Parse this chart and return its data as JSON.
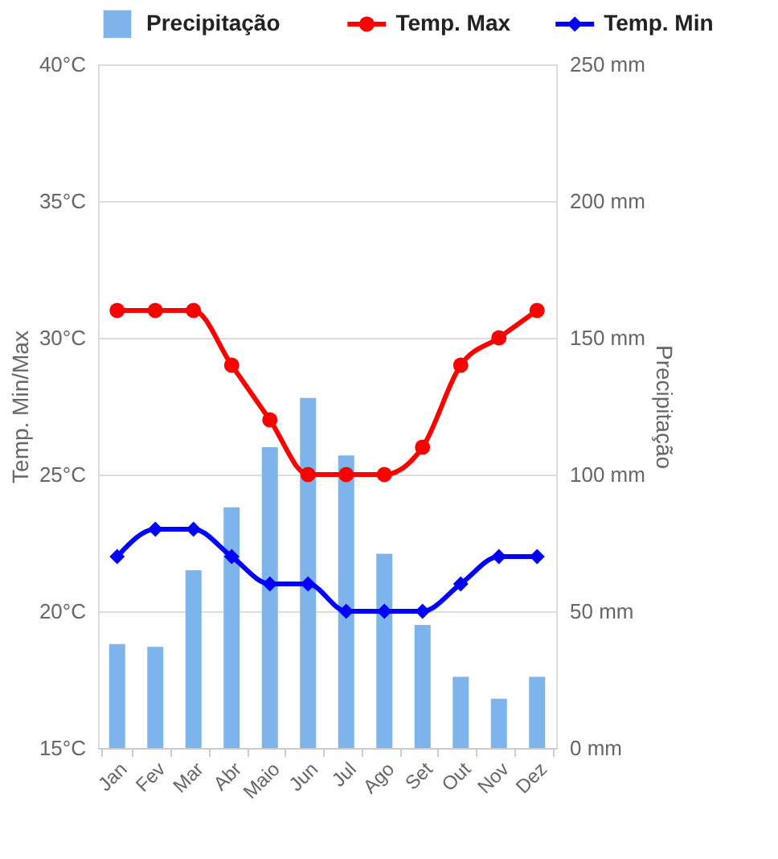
{
  "chart_data": {
    "type": "bar",
    "categories": [
      "Jan",
      "Fev",
      "Mar",
      "Abr",
      "Maio",
      "Jun",
      "Jul",
      "Ago",
      "Set",
      "Out",
      "Nov",
      "Dez"
    ],
    "series": [
      {
        "name": "Precipitação",
        "axis": "y2",
        "color": "#7cb4eb",
        "values": [
          38,
          37,
          65,
          88,
          110,
          128,
          107,
          71,
          45,
          26,
          18,
          26
        ]
      },
      {
        "name": "Temp. Max",
        "type": "line",
        "marker": "circle",
        "color": "#ff0000",
        "values": [
          31,
          31,
          31,
          29,
          27,
          25,
          25,
          25,
          26,
          29,
          30,
          31
        ]
      },
      {
        "name": "Temp. Min",
        "type": "line",
        "marker": "diamond",
        "color": "#0000ff",
        "values": [
          22,
          23,
          23,
          22,
          21,
          21,
          20,
          20,
          20,
          21,
          22,
          22
        ]
      }
    ],
    "ylabel": "Temp. Min/Max",
    "y2label": "Precipitação",
    "ylim": [
      15,
      40
    ],
    "yticks": [
      {
        "value": 15,
        "label": "15°C"
      },
      {
        "value": 20,
        "label": "20°C"
      },
      {
        "value": 25,
        "label": "25°C"
      },
      {
        "value": 30,
        "label": "30°C"
      },
      {
        "value": 35,
        "label": "35°C"
      },
      {
        "value": 40,
        "label": "40°C"
      }
    ],
    "y2lim": [
      0,
      250
    ],
    "y2ticks": [
      {
        "value": 0,
        "label": "0 mm"
      },
      {
        "value": 50,
        "label": "50 mm"
      },
      {
        "value": 100,
        "label": "100 mm"
      },
      {
        "value": 150,
        "label": "150 mm"
      },
      {
        "value": 200,
        "label": "200 mm"
      },
      {
        "value": 250,
        "label": "250 mm"
      }
    ],
    "grid": "y",
    "legend": "top",
    "line_style": "solid"
  }
}
